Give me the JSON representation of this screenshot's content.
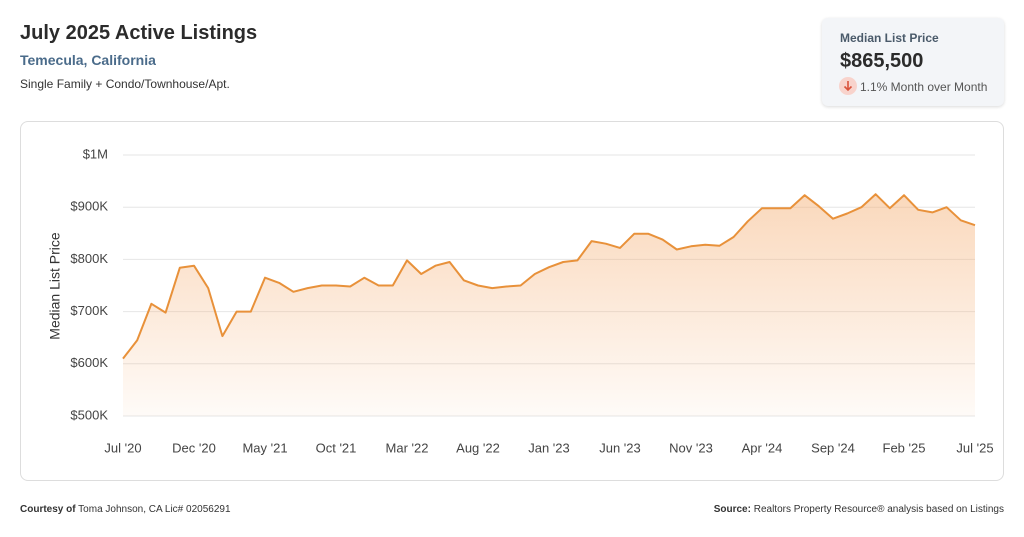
{
  "header": {
    "title": "July 2025 Active Listings",
    "location": "Temecula, California",
    "subtitle": "Single Family + Condo/Townhouse/Apt."
  },
  "kpi": {
    "label": "Median List Price",
    "value": "$865,500",
    "change": "1.1% Month over Month"
  },
  "footer": {
    "courtesy_label": "Courtesy of",
    "courtesy": "Toma Johnson, CA Lic# 02056291",
    "source_label": "Source:",
    "source": "Realtors Property Resource® analysis based on Listings"
  },
  "chart_data": {
    "type": "line",
    "y_label": "Median List Price",
    "color": "#e8913a",
    "grid": true,
    "area": true,
    "categories": [
      "Jul '20",
      null,
      null,
      null,
      null,
      "Dec '20",
      null,
      null,
      null,
      null,
      "May '21",
      null,
      null,
      null,
      null,
      "Oct '21",
      null,
      null,
      null,
      null,
      "Mar '22",
      null,
      null,
      null,
      null,
      "Aug '22",
      null,
      null,
      null,
      null,
      "Jan '23",
      null,
      null,
      null,
      null,
      "Jun '23",
      null,
      null,
      null,
      null,
      "Nov '23",
      null,
      null,
      null,
      null,
      "Apr '24",
      null,
      null,
      null,
      null,
      "Sep '24",
      null,
      null,
      null,
      null,
      "Feb '25",
      null,
      null,
      null,
      null,
      "Jul '25"
    ],
    "values": [
      610000,
      645000,
      715000,
      698000,
      784000,
      788000,
      745000,
      653000,
      700000,
      700000,
      765000,
      755000,
      738000,
      745000,
      750000,
      750000,
      748000,
      765000,
      750000,
      750000,
      798000,
      772000,
      788000,
      795000,
      760000,
      750000,
      745000,
      748000,
      750000,
      772000,
      785000,
      795000,
      798000,
      835000,
      830000,
      822000,
      849000,
      849000,
      838000,
      819000,
      825000,
      828000,
      826000,
      843000,
      873000,
      898000,
      898000,
      898000,
      923000,
      902000,
      878000,
      888000,
      900000,
      925000,
      898000,
      923000,
      895000,
      890000,
      900000,
      875000,
      865500
    ],
    "ylim": [
      500000,
      1000000
    ],
    "yticks": [
      {
        "value": 500000,
        "label": "$500K"
      },
      {
        "value": 600000,
        "label": "$600K"
      },
      {
        "value": 700000,
        "label": "$700K"
      },
      {
        "value": 800000,
        "label": "$800K"
      },
      {
        "value": 900000,
        "label": "$900K"
      },
      {
        "value": 1000000,
        "label": "$1M"
      }
    ]
  }
}
